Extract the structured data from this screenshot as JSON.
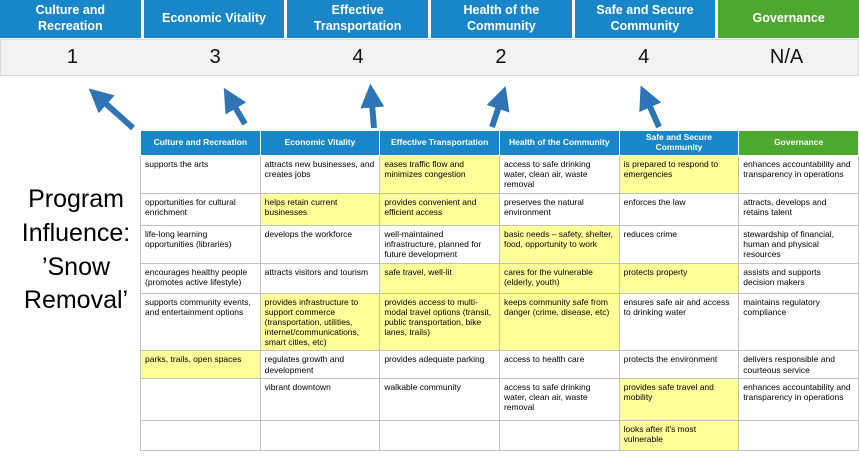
{
  "program": {
    "label": "Program Influence: ’Snow Removal’"
  },
  "pillars": [
    {
      "label": "Culture and Recreation",
      "score": "1",
      "color": "#1886c7"
    },
    {
      "label": "Economic Vitality",
      "score": "3",
      "color": "#1886c7"
    },
    {
      "label": "Effective Transportation",
      "score": "4",
      "color": "#1886c7"
    },
    {
      "label": "Health of the Community",
      "score": "2",
      "color": "#1886c7"
    },
    {
      "label": "Safe and Secure Community",
      "score": "4",
      "color": "#1886c7"
    },
    {
      "label": "Governance",
      "score": "N/A",
      "color": "#4ea72e"
    }
  ],
  "colors": {
    "header_blue": "#1886c7",
    "governance_green": "#4ea72e",
    "arrow_blue": "#2e75b6",
    "highlight_yellow": "#ffff99",
    "score_band_gray": "#f2f2f2"
  },
  "table": {
    "columns": [
      {
        "header": "Culture and Recreation",
        "header_color": "#1886c7",
        "cells": [
          {
            "text": "supports the arts",
            "highlight": false
          },
          {
            "text": "opportunities for cultural enrichment",
            "highlight": false
          },
          {
            "text": "life-long learning opportunities (libraries)",
            "highlight": false
          },
          {
            "text": "encourages healthy people (promotes active lifestyle)",
            "highlight": false
          },
          {
            "text": "supports community events, and entertainment options",
            "highlight": false
          },
          {
            "text": "parks, trails, open spaces",
            "highlight": true
          },
          {
            "text": "",
            "highlight": false
          },
          {
            "text": "",
            "highlight": false
          }
        ]
      },
      {
        "header": "Economic Vitality",
        "header_color": "#1886c7",
        "cells": [
          {
            "text": "attracts new businesses, and creates jobs",
            "highlight": false
          },
          {
            "text": "helps retain current businesses",
            "highlight": true
          },
          {
            "text": "develops the workforce",
            "highlight": false
          },
          {
            "text": "attracts visitors and tourism",
            "highlight": false
          },
          {
            "text": "provides infrastructure to support commerce (transportation, utilities, internet/communications, smart cities, etc)",
            "highlight": true
          },
          {
            "text": "regulates growth and development",
            "highlight": false
          },
          {
            "text": "vibrant downtown",
            "highlight": false
          },
          {
            "text": "",
            "highlight": false
          }
        ]
      },
      {
        "header": "Effective Transportation",
        "header_color": "#1886c7",
        "cells": [
          {
            "text": "eases traffic flow and minimizes congestion",
            "highlight": true
          },
          {
            "text": "provides convenient and efficient access",
            "highlight": true
          },
          {
            "text": "well-maintained infrastructure, planned for future development",
            "highlight": false
          },
          {
            "text": "safe travel, well-lit",
            "highlight": true
          },
          {
            "text": "provides access to multi-modal travel options (transit, public transportation, bike lanes, trails)",
            "highlight": true
          },
          {
            "text": "provides adequate parking",
            "highlight": false
          },
          {
            "text": "walkable community",
            "highlight": false
          },
          {
            "text": "",
            "highlight": false
          }
        ]
      },
      {
        "header": "Health of the Community",
        "header_color": "#1886c7",
        "cells": [
          {
            "text": "access to safe drinking water, clean air, waste removal",
            "highlight": false
          },
          {
            "text": "preserves the natural environment",
            "highlight": false
          },
          {
            "text": "basic needs – safety, shelter, food, opportunity to work",
            "highlight": true
          },
          {
            "text": "cares for the vulnerable (elderly, youth)",
            "highlight": true
          },
          {
            "text": "keeps community safe from danger (crime, disease, etc)",
            "highlight": true
          },
          {
            "text": "access to health care",
            "highlight": false
          },
          {
            "text": "access to safe drinking water, clean air, waste removal",
            "highlight": false
          },
          {
            "text": "",
            "highlight": false
          }
        ]
      },
      {
        "header": "Safe and Secure Community",
        "header_color": "#1886c7",
        "cells": [
          {
            "text": "is prepared to respond to emergencies",
            "highlight": true
          },
          {
            "text": "enforces the law",
            "highlight": false
          },
          {
            "text": "reduces crime",
            "highlight": false
          },
          {
            "text": "protects property",
            "highlight": true
          },
          {
            "text": "ensures safe air and access to drinking water",
            "highlight": false
          },
          {
            "text": "protects the environment",
            "highlight": false
          },
          {
            "text": "provides safe travel and mobility",
            "highlight": true
          },
          {
            "text": "looks after it's most vulnerable",
            "highlight": true
          }
        ]
      },
      {
        "header": "Governance",
        "header_color": "#4ea72e",
        "cells": [
          {
            "text": "enhances accountability and transparency in operations",
            "highlight": false
          },
          {
            "text": "attracts, develops and retains talent",
            "highlight": false
          },
          {
            "text": "stewardship of financial, human and physical resources",
            "highlight": false
          },
          {
            "text": "assists and supports decision makers",
            "highlight": false
          },
          {
            "text": "maintains regulatory compliance",
            "highlight": false
          },
          {
            "text": "delivers responsible and courteous service",
            "highlight": false
          },
          {
            "text": "enhances accountability and transparency in operations",
            "highlight": false
          },
          {
            "text": "",
            "highlight": false
          }
        ]
      }
    ]
  }
}
